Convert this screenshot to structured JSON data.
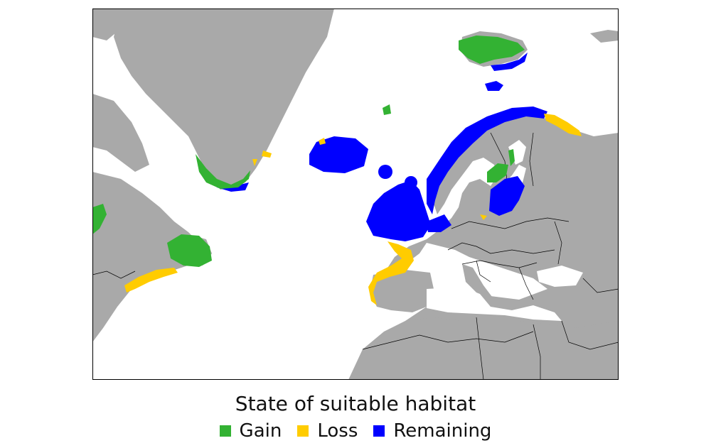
{
  "legend": {
    "title": "State of suitable habitat",
    "items": [
      {
        "key": "gain",
        "label": "Gain",
        "color": "#33b233"
      },
      {
        "key": "loss",
        "label": "Loss",
        "color": "#ffcc00"
      },
      {
        "key": "remaining",
        "label": "Remaining",
        "color": "#0000ff"
      }
    ]
  },
  "map": {
    "land_color": "#a9a9a9",
    "sea_color": "#ffffff",
    "border_color": "#000000"
  }
}
